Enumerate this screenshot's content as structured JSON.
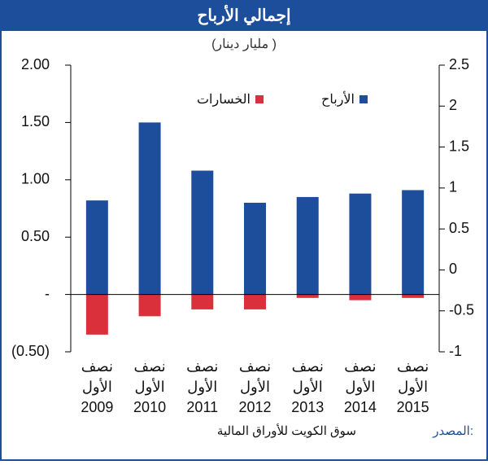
{
  "chart_data": {
    "type": "bar",
    "title": "إجمالي الأرباح",
    "subtitle": "(مليار دينار )",
    "categories": [
      [
        "نصف",
        "الأول",
        "2009"
      ],
      [
        "نصف",
        "الأول",
        "2010"
      ],
      [
        "نصف",
        "الأول",
        "2011"
      ],
      [
        "نصف",
        "الأول",
        "2012"
      ],
      [
        "نصف",
        "الأول",
        "2013"
      ],
      [
        "نصف",
        "الأول",
        "2014"
      ],
      [
        "نصف",
        "الأول",
        "2015"
      ]
    ],
    "series": [
      {
        "name": "الأرباح",
        "color": "#1c4e9b",
        "values": [
          0.82,
          1.5,
          1.08,
          0.8,
          0.85,
          0.88,
          0.91
        ]
      },
      {
        "name": "الخسارات",
        "color": "#d9303c",
        "values": [
          -0.35,
          -0.19,
          -0.13,
          -0.13,
          -0.03,
          -0.05,
          -0.03
        ]
      }
    ],
    "ylim": [
      -0.5,
      2.0
    ],
    "yticks": [
      {
        "value": 2.0,
        "label": "2.00"
      },
      {
        "value": 1.5,
        "label": "1.50"
      },
      {
        "value": 1.0,
        "label": "1.00"
      },
      {
        "value": 0.5,
        "label": "0.50"
      },
      {
        "value": 0,
        "label": "-"
      },
      {
        "value": -0.5,
        "label": "(0.50)"
      }
    ],
    "y2lim": [
      -1,
      2.5
    ],
    "y2ticks": [
      2.5,
      2,
      1.5,
      1,
      0.5,
      0,
      -0.5,
      -1
    ],
    "legend": "top",
    "source_label": "المصدر:",
    "source": "سوق الكويت للأوراق المالية"
  }
}
